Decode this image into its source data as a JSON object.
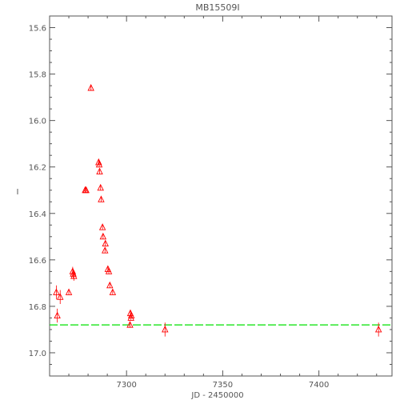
{
  "chart_data": {
    "type": "scatter",
    "title": "MB15509I",
    "xlabel": "JD - 2450000",
    "ylabel": "I",
    "xlim": [
      7260,
      7438
    ],
    "ylim": [
      17.1,
      15.55
    ],
    "y_inverted": true,
    "xticks": [
      7300,
      7350,
      7400
    ],
    "yticks": [
      15.6,
      15.8,
      16.0,
      16.2,
      16.4,
      16.6,
      16.8,
      17.0
    ],
    "grid": false,
    "colors": {
      "points": "#ff0000",
      "baseline": "#00e000",
      "axes": "#555555"
    },
    "baseline": {
      "y": 16.88,
      "style": "dashed",
      "name": ""
    },
    "series": [
      {
        "marker": "triangle-open",
        "points": [
          {
            "x": 7263.5,
            "y": 16.74,
            "err": 0.03
          },
          {
            "x": 7264.0,
            "y": 16.84,
            "err": 0.03
          },
          {
            "x": 7265.5,
            "y": 16.76,
            "err": 0.03
          },
          {
            "x": 7270.0,
            "y": 16.74,
            "err": 0.01
          },
          {
            "x": 7272.0,
            "y": 16.65,
            "err": 0.02
          },
          {
            "x": 7272.3,
            "y": 16.66,
            "err": 0.02
          },
          {
            "x": 7272.6,
            "y": 16.67,
            "err": 0.02
          },
          {
            "x": 7278.5,
            "y": 16.3,
            "err": 0.01
          },
          {
            "x": 7279.0,
            "y": 16.3,
            "err": 0.01
          },
          {
            "x": 7281.5,
            "y": 15.86,
            "err": 0.01
          },
          {
            "x": 7285.5,
            "y": 16.18,
            "err": 0.01
          },
          {
            "x": 7285.8,
            "y": 16.19,
            "err": 0.01
          },
          {
            "x": 7286.0,
            "y": 16.22,
            "err": 0.01
          },
          {
            "x": 7286.5,
            "y": 16.29,
            "err": 0.01
          },
          {
            "x": 7286.8,
            "y": 16.34,
            "err": 0.01
          },
          {
            "x": 7287.5,
            "y": 16.46,
            "err": 0.01
          },
          {
            "x": 7287.8,
            "y": 16.5,
            "err": 0.01
          },
          {
            "x": 7289.0,
            "y": 16.53,
            "err": 0.01
          },
          {
            "x": 7288.8,
            "y": 16.56,
            "err": 0.01
          },
          {
            "x": 7290.3,
            "y": 16.64,
            "err": 0.01
          },
          {
            "x": 7290.8,
            "y": 16.65,
            "err": 0.01
          },
          {
            "x": 7291.3,
            "y": 16.71,
            "err": 0.01
          },
          {
            "x": 7292.8,
            "y": 16.74,
            "err": 0.01
          },
          {
            "x": 7302.0,
            "y": 16.83,
            "err": 0.01
          },
          {
            "x": 7302.5,
            "y": 16.84,
            "err": 0.01
          },
          {
            "x": 7302.3,
            "y": 16.85,
            "err": 0.01
          },
          {
            "x": 7301.8,
            "y": 16.88,
            "err": 0.01
          },
          {
            "x": 7320.0,
            "y": 16.9,
            "err": 0.03
          },
          {
            "x": 7431.0,
            "y": 16.9,
            "err": 0.03
          }
        ]
      }
    ]
  }
}
